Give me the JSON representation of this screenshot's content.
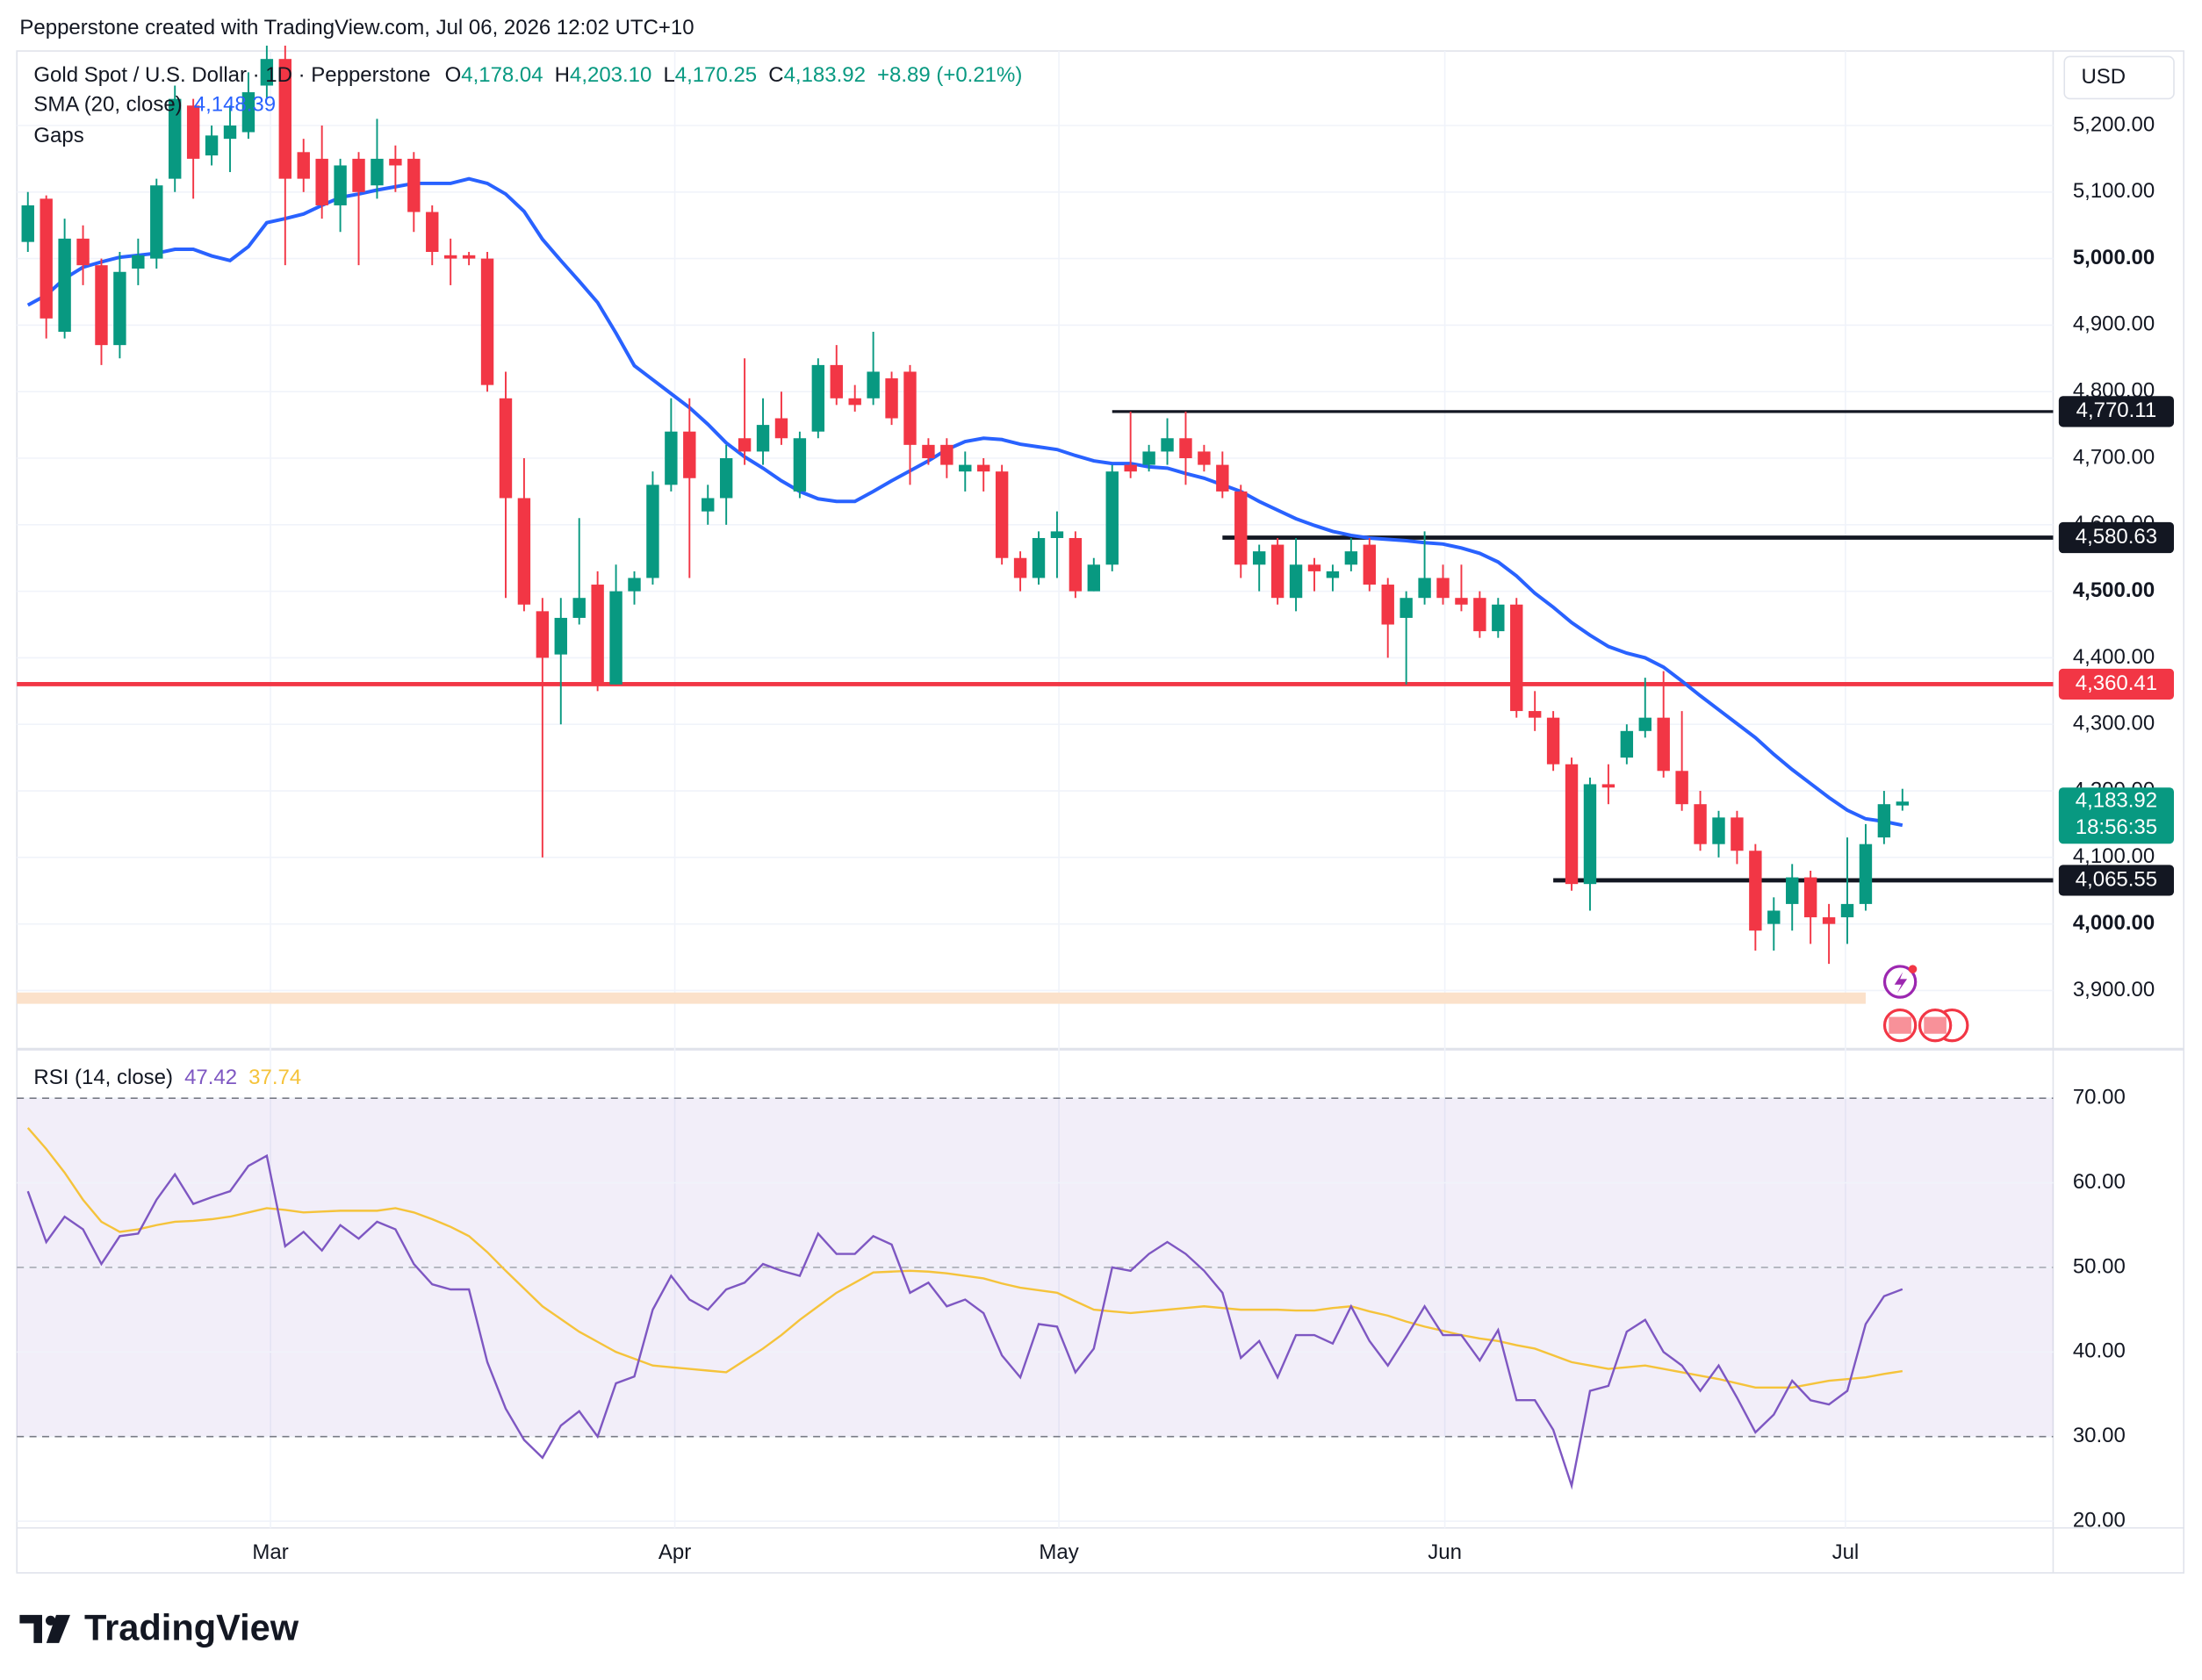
{
  "header": {
    "attribution": "Pepperstone created with TradingView.com, Jul 06, 2026 12:02 UTC+10",
    "symbol": "Gold Spot / U.S. Dollar · 1D · Pepperstone",
    "ohlc": [
      {
        "key": "O",
        "value": "4,178.04"
      },
      {
        "key": "H",
        "value": "4,203.10"
      },
      {
        "key": "L",
        "value": "4,170.25"
      },
      {
        "key": "C",
        "value": "4,183.92"
      }
    ],
    "change": "+8.89 (+0.21%)",
    "sma_legend": "SMA (20, close)",
    "sma_value": "4,148.39",
    "gaps": "Gaps",
    "currency": "USD",
    "last_price_label": "4,183.92",
    "countdown": "18:56:35",
    "rsi_legend": "RSI (14, close)",
    "rsi_value": "47.42",
    "rsi_ma_value": "37.74"
  },
  "logo": "TradingView",
  "chart_data": {
    "type": "candlestick",
    "up_color": "#089981",
    "down_color": "#f23645",
    "open": [
      5025,
      5090,
      4890,
      5030,
      4990,
      4870,
      4985,
      5000,
      5120,
      5230,
      5155,
      5180,
      5190,
      5260,
      5300,
      5160,
      5150,
      5080,
      5150,
      5110,
      5150,
      5150,
      5070,
      5005,
      5005,
      5000,
      4790,
      4640,
      4470,
      4405,
      4460,
      4510,
      4360,
      4500,
      4520,
      4660,
      4740,
      4620,
      4640,
      4730,
      4710,
      4760,
      4650,
      4740,
      4840,
      4790,
      4790,
      4820,
      4830,
      4720,
      4720,
      4680,
      4690,
      4680,
      4550,
      4520,
      4580,
      4580,
      4500,
      4540,
      4690,
      4690,
      4710,
      4730,
      4710,
      4690,
      4650,
      4540,
      4570,
      4490,
      4540,
      4520,
      4540,
      4570,
      4510,
      4460,
      4490,
      4520,
      4490,
      4490,
      4440,
      4480,
      4320,
      4310,
      4240,
      4060,
      4210,
      4250,
      4290,
      4310,
      4230,
      4180,
      4120,
      4160,
      4110,
      4000,
      4030,
      4070,
      4010,
      4010,
      4030,
      4130,
      4178.04
    ],
    "high": [
      5100,
      5095,
      5060,
      5050,
      5000,
      5010,
      5030,
      5120,
      5260,
      5240,
      5200,
      5230,
      5280,
      5320,
      5320,
      5180,
      5200,
      5150,
      5160,
      5210,
      5170,
      5160,
      5080,
      5030,
      5010,
      5010,
      4830,
      4700,
      4490,
      4490,
      4610,
      4530,
      4540,
      4530,
      4680,
      4790,
      4790,
      4660,
      4720,
      4850,
      4790,
      4800,
      4740,
      4850,
      4870,
      4810,
      4890,
      4830,
      4840,
      4730,
      4730,
      4710,
      4700,
      4690,
      4560,
      4590,
      4620,
      4590,
      4550,
      4690,
      4770,
      4720,
      4760,
      4770,
      4720,
      4710,
      4660,
      4570,
      4580,
      4580,
      4550,
      4540,
      4580,
      4580,
      4520,
      4500,
      4590,
      4540,
      4540,
      4500,
      4490,
      4490,
      4350,
      4320,
      4250,
      4220,
      4240,
      4300,
      4370,
      4380,
      4320,
      4200,
      4170,
      4170,
      4120,
      4040,
      4090,
      4080,
      4030,
      4130,
      4150,
      4200,
      4203.1
    ],
    "low": [
      5010,
      4880,
      4880,
      4960,
      4840,
      4850,
      4960,
      4985,
      5100,
      5090,
      5140,
      5130,
      5180,
      5240,
      4990,
      5100,
      5060,
      5040,
      4990,
      5090,
      5100,
      5040,
      4990,
      4960,
      4990,
      4800,
      4490,
      4470,
      4100,
      4300,
      4450,
      4350,
      4360,
      4480,
      4510,
      4650,
      4520,
      4600,
      4600,
      4690,
      4690,
      4720,
      4640,
      4730,
      4780,
      4770,
      4780,
      4750,
      4660,
      4690,
      4670,
      4650,
      4650,
      4540,
      4500,
      4510,
      4520,
      4490,
      4500,
      4530,
      4670,
      4680,
      4690,
      4660,
      4680,
      4640,
      4520,
      4500,
      4480,
      4470,
      4500,
      4500,
      4530,
      4500,
      4400,
      4360,
      4480,
      4480,
      4470,
      4430,
      4430,
      4310,
      4290,
      4230,
      4050,
      4020,
      4180,
      4240,
      4280,
      4220,
      4170,
      4110,
      4100,
      4090,
      3960,
      3960,
      3990,
      3970,
      3940,
      3970,
      4020,
      4120,
      4170.25
    ],
    "close": [
      5080,
      4910,
      5030,
      4990,
      4870,
      4980,
      5005,
      5110,
      5240,
      5150,
      5185,
      5200,
      5250,
      5300,
      5120,
      5120,
      5080,
      5140,
      5100,
      5150,
      5140,
      5070,
      5010,
      5000,
      5000,
      4810,
      4640,
      4480,
      4400,
      4460,
      4490,
      4360,
      4500,
      4520,
      4660,
      4740,
      4670,
      4640,
      4700,
      4710,
      4750,
      4730,
      4730,
      4840,
      4790,
      4780,
      4830,
      4760,
      4720,
      4700,
      4690,
      4690,
      4680,
      4550,
      4520,
      4580,
      4590,
      4500,
      4540,
      4680,
      4680,
      4710,
      4730,
      4700,
      4690,
      4650,
      4540,
      4560,
      4490,
      4540,
      4530,
      4530,
      4560,
      4510,
      4450,
      4490,
      4520,
      4490,
      4480,
      4440,
      4480,
      4320,
      4310,
      4240,
      4060,
      4210,
      4205,
      4290,
      4310,
      4230,
      4180,
      4120,
      4160,
      4110,
      3990,
      4020,
      4070,
      4010,
      4000,
      4030,
      4120,
      4180,
      4183.92
    ],
    "ylim": [
      3816,
      5312
    ],
    "yticks": [
      {
        "value": 3900,
        "label": "3,900.00"
      },
      {
        "value": 4000,
        "label": "4,000.00"
      },
      {
        "value": 4100,
        "label": "4,100.00"
      },
      {
        "value": 4200,
        "label": "4,200.00"
      },
      {
        "value": 4300,
        "label": "4,300.00"
      },
      {
        "value": 4400,
        "label": "4,400.00"
      },
      {
        "value": 4500,
        "label": "4,500.00"
      },
      {
        "value": 4600,
        "label": "4,600.00"
      },
      {
        "value": 4700,
        "label": "4,700.00"
      },
      {
        "value": 4800,
        "label": "4,800.00"
      },
      {
        "value": 4900,
        "label": "4,900.00"
      },
      {
        "value": 5000,
        "label": "5,000.00"
      },
      {
        "value": 5100,
        "label": "5,100.00"
      },
      {
        "value": 5200,
        "label": "5,200.00"
      }
    ],
    "xlim": [
      -0.6,
      110.2
    ],
    "xticks": [
      {
        "value": 13.2,
        "label": "Mar"
      },
      {
        "value": 35.2,
        "label": "Apr"
      },
      {
        "value": 56.1,
        "label": "May"
      },
      {
        "value": 77.1,
        "label": "Jun"
      },
      {
        "value": 98.9,
        "label": "Jul"
      }
    ],
    "grid": true,
    "sma": {
      "color": "#2962ff",
      "values": [
        4930,
        4945,
        4970,
        4987,
        4995,
        5002,
        5005,
        5008,
        5014,
        5014,
        5004,
        4997,
        5018,
        5054,
        5060,
        5067,
        5080,
        5092,
        5097,
        5103,
        5108,
        5113,
        5113,
        5113,
        5120,
        5113,
        5097,
        5071,
        5029,
        4997,
        4966,
        4934,
        4888,
        4839,
        4818,
        4797,
        4776,
        4751,
        4723,
        4702,
        4685,
        4666,
        4650,
        4639,
        4635,
        4635,
        4650,
        4666,
        4681,
        4696,
        4713,
        4725,
        4730,
        4728,
        4721,
        4717,
        4713,
        4704,
        4696,
        4692,
        4692,
        4687,
        4685,
        4677,
        4670,
        4660,
        4650,
        4635,
        4622,
        4609,
        4599,
        4590,
        4584,
        4580,
        4578,
        4576,
        4573,
        4571,
        4565,
        4557,
        4544,
        4523,
        4497,
        4476,
        4453,
        4434,
        4417,
        4407,
        4400,
        4386,
        4365,
        4343,
        4322,
        4301,
        4280,
        4255,
        4232,
        4211,
        4190,
        4171,
        4158,
        4154,
        4148.39
      ]
    },
    "levels": [
      {
        "value": 4770.11,
        "label": "4,770.11",
        "start": 59,
        "color": "#131722",
        "style": "thin"
      },
      {
        "value": 4580.63,
        "label": "4,580.63",
        "start": 65,
        "color": "#131722",
        "style": "thick"
      },
      {
        "value": 4360.41,
        "label": "4,360.41",
        "color": "#f23645",
        "style": "thick"
      },
      {
        "value": 4065.55,
        "label": "4,065.55",
        "start": 83,
        "color": "#131722",
        "style": "thick"
      }
    ],
    "gap_zone": {
      "low": 3880,
      "high": 3897,
      "end": 100,
      "color": "#fbe1ca"
    },
    "last_color": "#089981",
    "rsi": {
      "type": "line",
      "ylim": [
        19.2,
        75.3
      ],
      "yticks": [
        {
          "value": 20,
          "label": "20.00"
        },
        {
          "value": 30,
          "label": "30.00"
        },
        {
          "value": 40,
          "label": "40.00"
        },
        {
          "value": 50,
          "label": "50.00"
        },
        {
          "value": 60,
          "label": "60.00"
        },
        {
          "value": 70,
          "label": "70.00"
        }
      ],
      "band": [
        30,
        70
      ],
      "midline": 50,
      "band_color": "#7e57c2",
      "series": [
        {
          "color": "#7e57c2",
          "values": [
            59,
            53,
            56,
            54.5,
            50.4,
            53.7,
            54,
            58,
            61,
            57.5,
            58.3,
            59,
            62,
            63.2,
            52.5,
            54.2,
            52,
            55,
            53.4,
            55.4,
            54.5,
            50.4,
            48,
            47.4,
            47.4,
            38.8,
            33.3,
            29.6,
            27.5,
            31.3,
            33,
            30,
            36.3,
            37.1,
            45,
            49,
            46.2,
            45,
            47.4,
            48.2,
            50.4,
            49.6,
            49,
            54,
            51.6,
            51.6,
            53.7,
            52.7,
            47,
            48.2,
            45.4,
            46.2,
            44.6,
            39.6,
            37,
            43.3,
            43,
            37.6,
            40.4,
            50,
            49.6,
            51.6,
            53,
            51.6,
            49.6,
            47,
            39.3,
            41.3,
            37,
            42,
            42,
            41,
            45.4,
            41.3,
            38.4,
            41.8,
            45.4,
            42,
            42,
            39,
            42.6,
            34.3,
            34.3,
            30.8,
            24.2,
            35.4,
            36,
            42.4,
            43.8,
            40,
            38.4,
            35.4,
            38.4,
            34.6,
            30.5,
            32.6,
            36.6,
            34.3,
            33.8,
            35.4,
            43.3,
            46.6,
            47.42
          ]
        },
        {
          "color": "#f5c33b",
          "values": [
            66.5,
            64,
            61.2,
            58,
            55.4,
            54.2,
            54.5,
            55,
            55.4,
            55.5,
            55.7,
            56,
            56.5,
            57,
            56.8,
            56.5,
            56.6,
            56.7,
            56.7,
            56.7,
            57,
            56.5,
            55.7,
            54.8,
            53.7,
            51.8,
            49.6,
            47.5,
            45.4,
            43.9,
            42.4,
            41.2,
            40,
            39.2,
            38.4,
            38.2,
            38,
            37.8,
            37.6,
            39,
            40.4,
            42,
            43.8,
            45.4,
            47,
            48.2,
            49.4,
            49.5,
            49.6,
            49.5,
            49.3,
            49,
            48.7,
            48.1,
            47.6,
            47.3,
            47,
            46,
            45,
            44.8,
            44.6,
            44.8,
            45,
            45.2,
            45.4,
            45.2,
            45,
            45,
            45,
            44.9,
            44.9,
            45.2,
            45.4,
            44.8,
            44.3,
            43.6,
            43,
            42.5,
            42,
            41.6,
            41.3,
            40.8,
            40.4,
            39.6,
            38.8,
            38.4,
            38,
            38.2,
            38.4,
            38,
            37.6,
            37.2,
            36.8,
            36.3,
            35.8,
            35.8,
            35.8,
            36.2,
            36.6,
            36.8,
            37,
            37.4,
            37.74
          ]
        }
      ]
    }
  }
}
